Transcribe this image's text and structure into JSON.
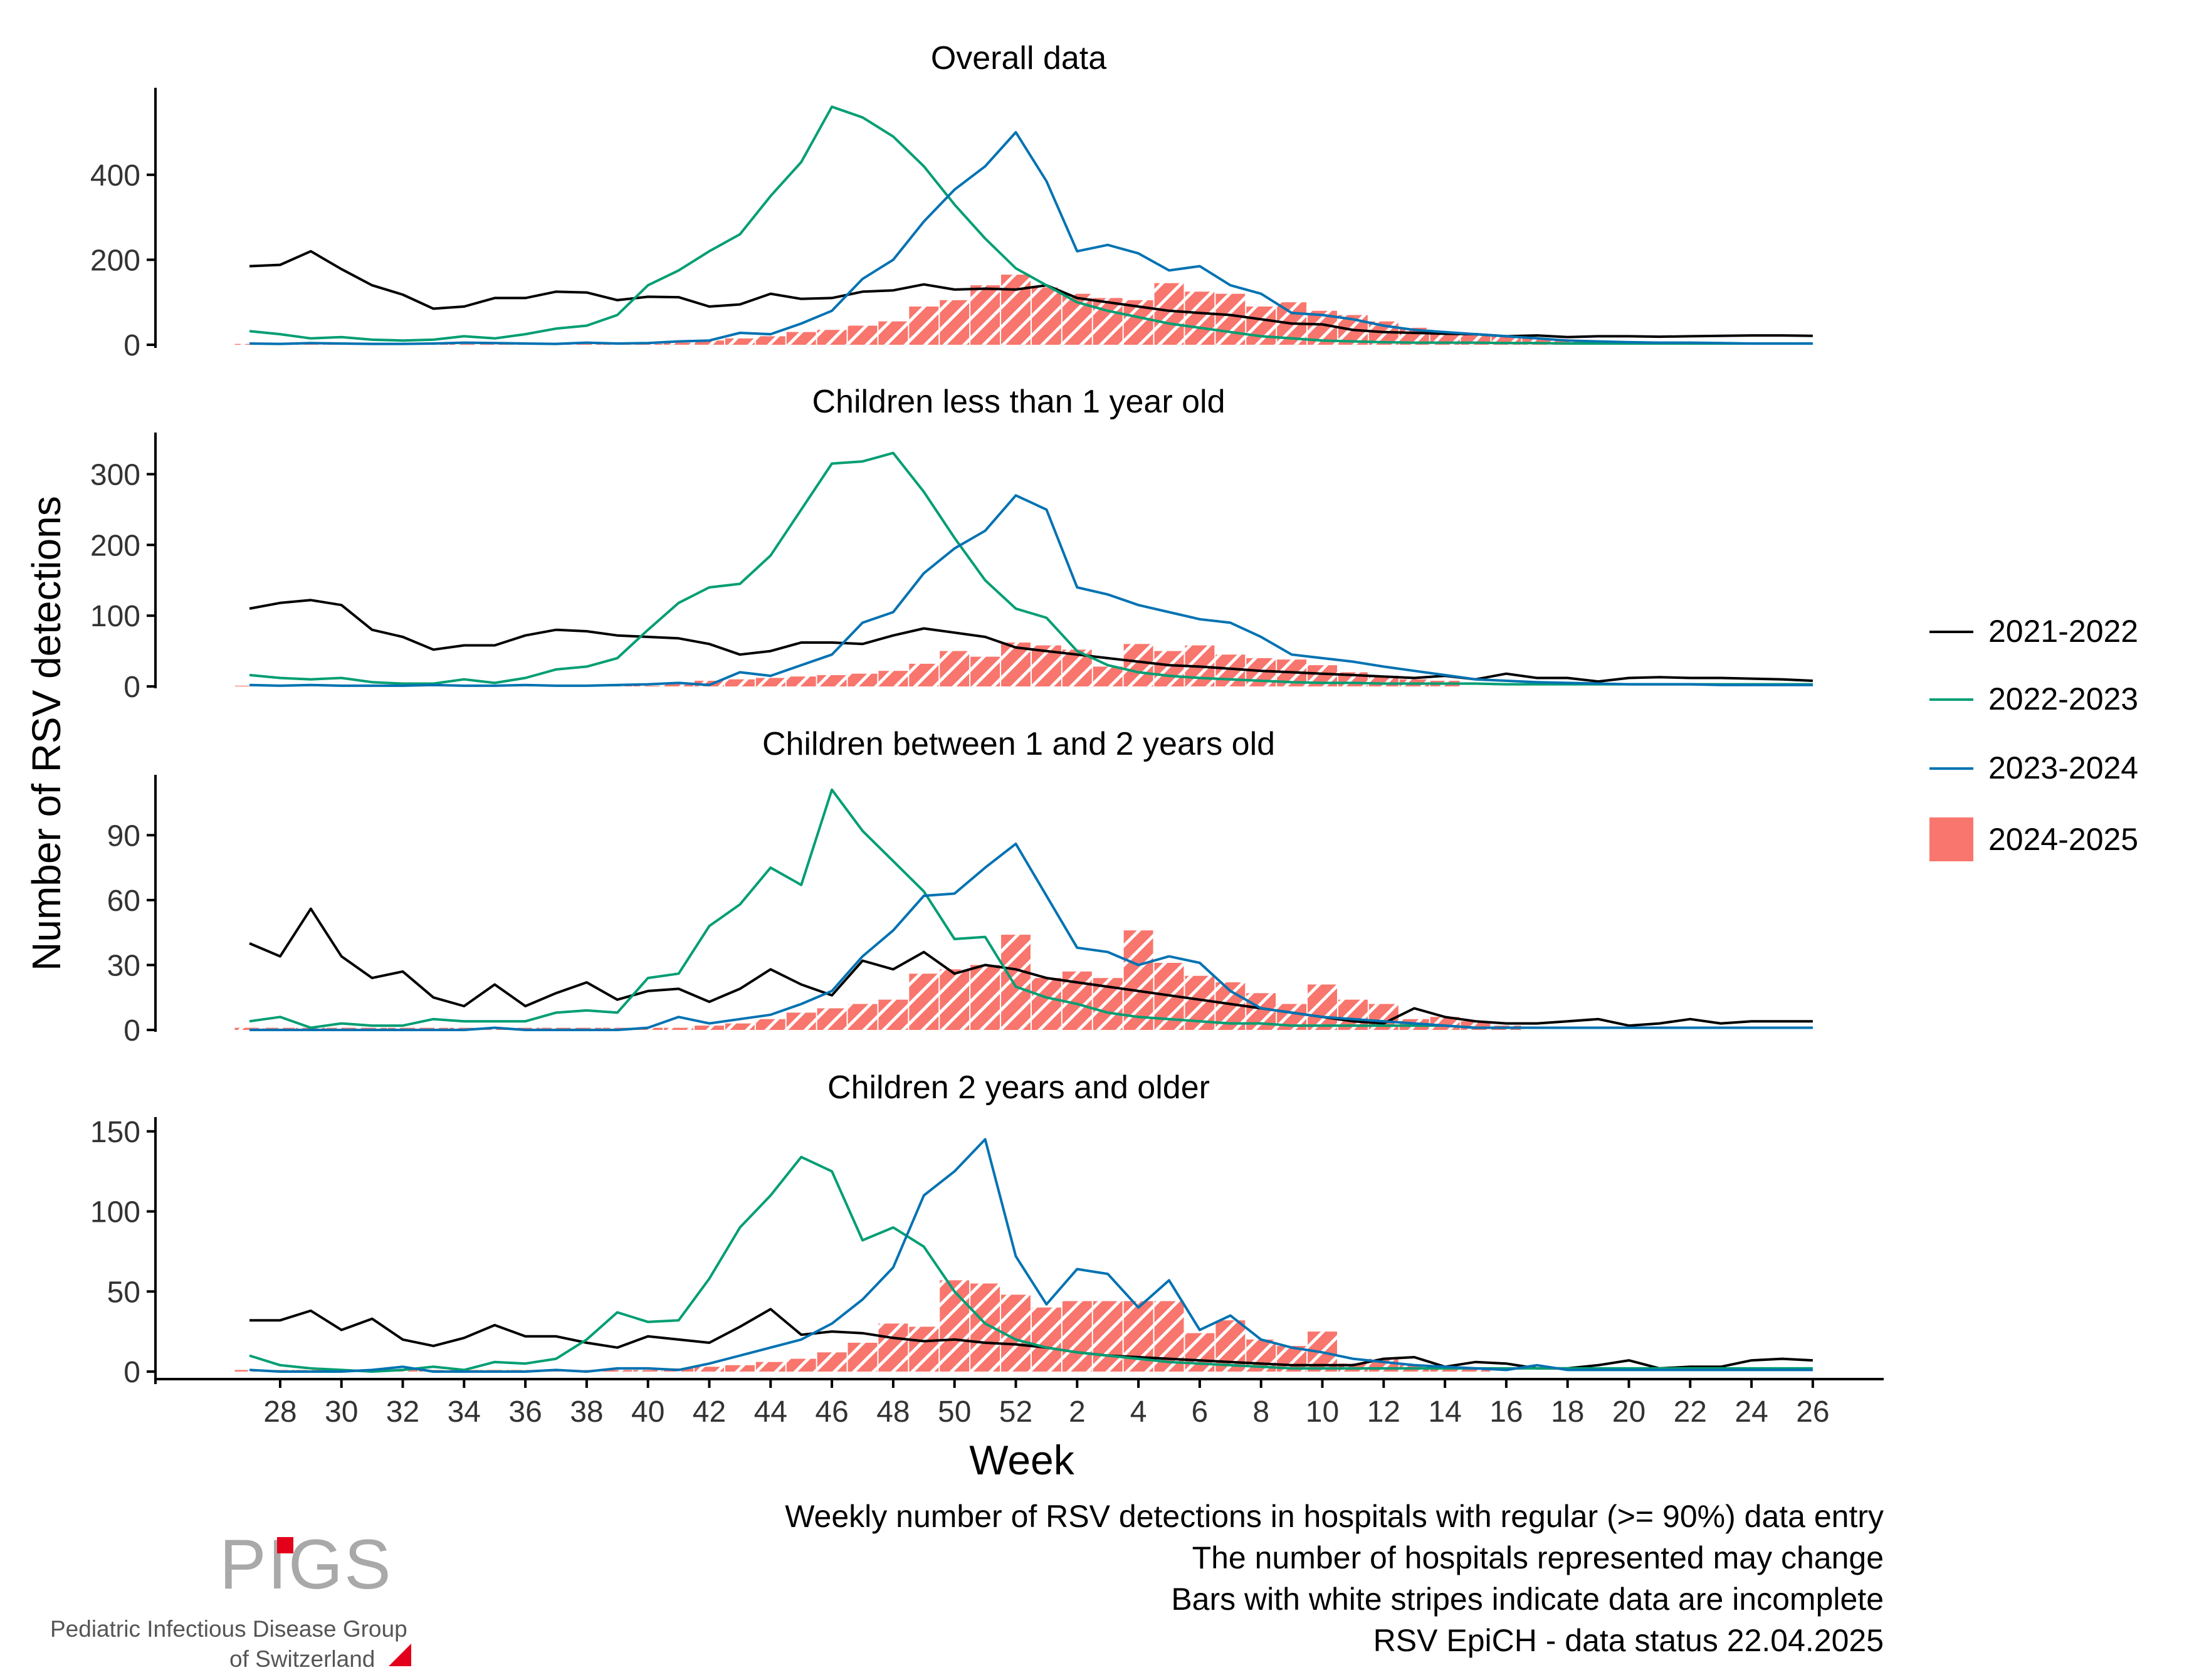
{
  "chart_data": {
    "type": "line",
    "ylabel": "Number of RSV detections",
    "xlabel": "Week",
    "x_ticks": [
      "28",
      "30",
      "32",
      "34",
      "36",
      "38",
      "40",
      "42",
      "44",
      "46",
      "48",
      "50",
      "52",
      "2",
      "4",
      "6",
      "8",
      "10",
      "12",
      "14",
      "16",
      "18",
      "20",
      "22",
      "24",
      "26"
    ],
    "legend": {
      "position": "right",
      "entries": [
        {
          "name": "2021-2022",
          "color": "#000000",
          "kind": "line"
        },
        {
          "name": "2022-2023",
          "color": "#009e73",
          "kind": "line"
        },
        {
          "name": "2023-2024",
          "color": "#0072b2",
          "kind": "line"
        },
        {
          "name": "2024-2025",
          "color": "#f8766d",
          "kind": "bar"
        }
      ]
    },
    "panels": [
      {
        "title": "Overall data",
        "yticks": [
          0,
          200,
          400
        ],
        "ylim": [
          0,
          590
        ],
        "series": [
          {
            "name": "2021-2022",
            "values": [
              185,
              188,
              220,
              178,
              140,
              118,
              85,
              90,
              110,
              110,
              125,
              123,
              105,
              113,
              112,
              90,
              95,
              120,
              108,
              110,
              125,
              128,
              142,
              130,
              132,
              130,
              140,
              110,
              100,
              90,
              80,
              75,
              70,
              60,
              50,
              48,
              35,
              30,
              28,
              26,
              25,
              20,
              22,
              18,
              20,
              20,
              19,
              20,
              21,
              22,
              22,
              21
            ]
          },
          {
            "name": "2022-2023",
            "values": [
              32,
              25,
              15,
              18,
              12,
              10,
              12,
              20,
              15,
              25,
              38,
              45,
              70,
              140,
              175,
              220,
              260,
              350,
              430,
              560,
              535,
              490,
              420,
              330,
              250,
              180,
              140,
              100,
              80,
              65,
              50,
              40,
              30,
              20,
              15,
              10,
              8,
              6,
              5,
              5,
              5,
              4,
              4,
              3,
              3,
              3,
              3,
              3,
              3,
              3,
              3,
              3
            ]
          },
          {
            "name": "2023-2024",
            "values": [
              3,
              2,
              4,
              3,
              2,
              2,
              3,
              5,
              4,
              3,
              2,
              5,
              3,
              4,
              8,
              10,
              28,
              25,
              50,
              80,
              155,
              200,
              290,
              365,
              420,
              500,
              385,
              220,
              235,
              215,
              175,
              185,
              140,
              120,
              75,
              70,
              60,
              45,
              35,
              30,
              25,
              20,
              15,
              10,
              8,
              6,
              5,
              5,
              4,
              3,
              3,
              3
            ]
          },
          {
            "name": "2024-2025",
            "values": [
              2,
              2,
              2,
              2,
              2,
              2,
              2,
              2,
              2,
              2,
              2,
              2,
              2,
              2,
              5,
              10,
              15,
              20,
              30,
              35,
              45,
              55,
              90,
              105,
              140,
              165,
              135,
              120,
              110,
              105,
              145,
              125,
              120,
              90,
              100,
              80,
              70,
              55,
              40,
              30,
              25,
              20,
              15,
              10,
              null,
              null,
              null,
              null,
              null,
              null,
              null,
              null
            ]
          }
        ]
      },
      {
        "title": "Children less than 1 year old",
        "yticks": [
          0,
          100,
          200,
          300
        ],
        "ylim": [
          0,
          350
        ],
        "series": [
          {
            "name": "2021-2022",
            "values": [
              110,
              118,
              122,
              115,
              80,
              70,
              52,
              58,
              58,
              72,
              80,
              78,
              72,
              70,
              68,
              60,
              45,
              50,
              62,
              62,
              60,
              72,
              82,
              76,
              70,
              55,
              50,
              45,
              40,
              35,
              30,
              28,
              25,
              22,
              20,
              18,
              16,
              14,
              12,
              15,
              10,
              18,
              12,
              12,
              7,
              12,
              13,
              12,
              12,
              11,
              10,
              8
            ]
          },
          {
            "name": "2022-2023",
            "values": [
              16,
              12,
              10,
              12,
              6,
              4,
              4,
              10,
              5,
              12,
              24,
              28,
              40,
              80,
              118,
              140,
              145,
              185,
              250,
              315,
              318,
              330,
              275,
              210,
              150,
              110,
              97,
              50,
              30,
              20,
              15,
              12,
              10,
              8,
              6,
              5,
              5,
              4,
              4,
              4,
              4,
              3,
              3,
              3,
              3,
              3,
              3,
              3,
              3,
              3,
              3,
              3
            ]
          },
          {
            "name": "2023-2024",
            "values": [
              2,
              1,
              2,
              1,
              1,
              1,
              2,
              1,
              1,
              2,
              1,
              1,
              2,
              3,
              5,
              2,
              20,
              15,
              30,
              45,
              90,
              105,
              160,
              195,
              220,
              270,
              250,
              140,
              130,
              115,
              105,
              95,
              90,
              70,
              45,
              40,
              35,
              28,
              22,
              16,
              10,
              8,
              6,
              5,
              4,
              3,
              3,
              3,
              2,
              2,
              2,
              2
            ]
          },
          {
            "name": "2024-2025",
            "values": [
              1,
              1,
              1,
              1,
              1,
              1,
              1,
              1,
              1,
              1,
              1,
              1,
              1,
              1,
              5,
              8,
              10,
              12,
              14,
              16,
              18,
              22,
              32,
              50,
              42,
              62,
              58,
              52,
              28,
              60,
              50,
              58,
              45,
              40,
              38,
              30,
              20,
              15,
              10,
              8,
              null,
              null,
              null,
              null,
              null,
              null,
              null,
              null,
              null,
              null,
              null,
              null
            ]
          }
        ]
      },
      {
        "title": "Children between 1 and 2 years old",
        "yticks": [
          0,
          30,
          60,
          90
        ],
        "ylim": [
          0,
          115
        ],
        "series": [
          {
            "name": "2021-2022",
            "values": [
              40,
              34,
              56,
              34,
              24,
              27,
              15,
              11,
              21,
              11,
              17,
              22,
              14,
              18,
              19,
              13,
              19,
              28,
              21,
              16,
              32,
              28,
              36,
              26,
              30,
              28,
              24,
              22,
              20,
              18,
              16,
              14,
              12,
              10,
              8,
              6,
              4,
              3,
              10,
              6,
              4,
              3,
              3,
              4,
              5,
              2,
              3,
              5,
              3,
              4,
              4,
              4
            ]
          },
          {
            "name": "2022-2023",
            "values": [
              4,
              6,
              1,
              3,
              2,
              2,
              5,
              4,
              4,
              4,
              8,
              9,
              8,
              24,
              26,
              48,
              58,
              75,
              67,
              111,
              92,
              78,
              64,
              42,
              43,
              20,
              15,
              12,
              8,
              6,
              5,
              4,
              3,
              3,
              2,
              2,
              2,
              2,
              2,
              2,
              1,
              1,
              1,
              1,
              1,
              1,
              1,
              1,
              1,
              1,
              1,
              1
            ]
          },
          {
            "name": "2023-2024",
            "values": [
              0,
              0,
              0,
              0,
              0,
              0,
              0,
              0,
              1,
              0,
              0,
              0,
              0,
              1,
              6,
              3,
              5,
              7,
              12,
              18,
              34,
              46,
              62,
              63,
              75,
              86,
              62,
              38,
              36,
              30,
              34,
              31,
              18,
              10,
              8,
              6,
              5,
              4,
              3,
              2,
              1,
              1,
              1,
              1,
              1,
              1,
              1,
              1,
              1,
              1,
              1,
              1
            ]
          },
          {
            "name": "2024-2025",
            "values": [
              1,
              1,
              1,
              1,
              1,
              1,
              1,
              1,
              1,
              1,
              1,
              1,
              1,
              1,
              1,
              2,
              3,
              5,
              8,
              10,
              12,
              14,
              26,
              28,
              30,
              44,
              24,
              27,
              24,
              46,
              31,
              25,
              22,
              17,
              12,
              21,
              14,
              12,
              5,
              6,
              4,
              2,
              null,
              null,
              null,
              null,
              null,
              null,
              null,
              null,
              null,
              null
            ]
          }
        ]
      },
      {
        "title": "Children 2 years and older",
        "yticks": [
          0,
          50,
          100,
          150
        ],
        "ylim": [
          0,
          155
        ],
        "series": [
          {
            "name": "2021-2022",
            "values": [
              32,
              32,
              38,
              26,
              33,
              20,
              16,
              21,
              29,
              22,
              22,
              18,
              15,
              22,
              20,
              18,
              28,
              39,
              23,
              25,
              24,
              21,
              19,
              20,
              18,
              17,
              15,
              12,
              10,
              9,
              8,
              7,
              6,
              5,
              4,
              4,
              4,
              8,
              9,
              3,
              6,
              5,
              2,
              2,
              4,
              7,
              2,
              3,
              3,
              7,
              8,
              7
            ]
          },
          {
            "name": "2022-2023",
            "values": [
              10,
              4,
              2,
              1,
              0,
              1,
              3,
              1,
              6,
              5,
              8,
              20,
              37,
              31,
              32,
              58,
              90,
              110,
              134,
              125,
              82,
              90,
              78,
              50,
              30,
              20,
              15,
              12,
              10,
              8,
              6,
              5,
              4,
              3,
              2,
              2,
              2,
              2,
              2,
              2,
              2,
              2,
              2,
              2,
              2,
              2,
              2,
              2,
              2,
              2,
              2,
              2
            ]
          },
          {
            "name": "2023-2024",
            "values": [
              1,
              0,
              0,
              0,
              1,
              3,
              0,
              0,
              0,
              0,
              1,
              0,
              2,
              2,
              1,
              5,
              10,
              15,
              20,
              30,
              45,
              65,
              110,
              125,
              145,
              72,
              42,
              64,
              61,
              40,
              57,
              26,
              35,
              20,
              15,
              12,
              8,
              6,
              4,
              3,
              2,
              1,
              4,
              1,
              1,
              1,
              1,
              1,
              1,
              1,
              1,
              1
            ]
          },
          {
            "name": "2024-2025",
            "values": [
              1,
              1,
              1,
              1,
              1,
              1,
              1,
              1,
              1,
              1,
              1,
              1,
              1,
              1,
              2,
              3,
              4,
              6,
              8,
              12,
              18,
              30,
              28,
              57,
              55,
              48,
              40,
              44,
              44,
              44,
              44,
              24,
              32,
              20,
              16,
              25,
              5,
              8,
              4,
              3,
              2,
              null,
              null,
              null,
              null,
              null,
              null,
              null,
              null,
              null,
              null,
              null
            ]
          }
        ]
      }
    ]
  },
  "notes": [
    "Weekly number of RSV detections in hospitals with regular (>= 90%) data entry",
    "The number of hospitals represented may change",
    "Bars with white stripes indicate data are incomplete",
    "RSV EpiCH - data status 22.04.2025"
  ],
  "logo": {
    "letters": "PIGS",
    "line1": "Pediatric Infectious Disease Group",
    "line2": "of Switzerland"
  }
}
